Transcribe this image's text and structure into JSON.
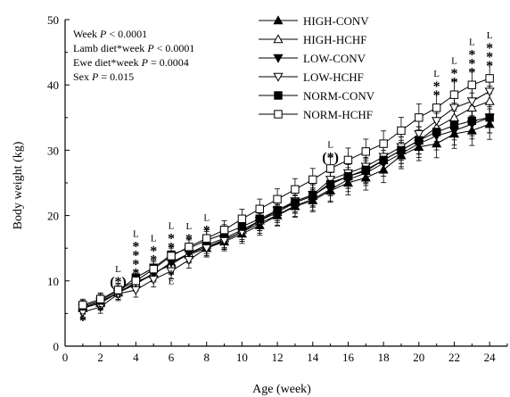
{
  "chart_data": {
    "type": "line",
    "xlabel": "Age (week)",
    "ylabel": "Body weight (kg)",
    "xlim": [
      0,
      25
    ],
    "ylim": [
      0,
      50
    ],
    "xticks": [
      0,
      2,
      4,
      6,
      8,
      10,
      12,
      14,
      16,
      18,
      20,
      22,
      24
    ],
    "yticks": [
      0,
      10,
      20,
      30,
      40,
      50
    ],
    "stats_text": [
      {
        "prefix": "Week ",
        "p": "P",
        "rest": " < 0.0001"
      },
      {
        "prefix": "Lamb diet*week ",
        "p": "P",
        "rest": " < 0.0001"
      },
      {
        "prefix": "Ewe diet*week ",
        "p": "P",
        "rest": " = 0.0004"
      },
      {
        "prefix": "Sex ",
        "p": "P",
        "rest": " = 0.015"
      }
    ],
    "legend_position": "top-right",
    "x": [
      1,
      2,
      3,
      4,
      5,
      6,
      7,
      8,
      9,
      10,
      11,
      12,
      13,
      14,
      15,
      16,
      17,
      18,
      19,
      20,
      21,
      22,
      23,
      24
    ],
    "series": [
      {
        "name": "HIGH-CONV",
        "marker": "triangle-up",
        "fill": "filled",
        "values": [
          5.9,
          6.8,
          8.2,
          9.6,
          11.0,
          12.8,
          14.0,
          15.0,
          16.0,
          17.2,
          18.5,
          20.0,
          21.4,
          22.3,
          23.8,
          25.0,
          25.8,
          27.0,
          29.2,
          30.5,
          31.0,
          32.5,
          33.0,
          34.0
        ]
      },
      {
        "name": "HIGH-HCHF",
        "marker": "triangle-up",
        "fill": "open",
        "values": [
          5.8,
          6.6,
          8.2,
          9.5,
          11.2,
          12.5,
          14.2,
          15.5,
          16.5,
          17.8,
          19.2,
          20.5,
          22.0,
          23.0,
          25.0,
          26.0,
          26.8,
          28.5,
          30.0,
          31.5,
          33.5,
          35.0,
          36.5,
          37.5
        ]
      },
      {
        "name": "LOW-CONV",
        "marker": "triangle-down",
        "fill": "filled",
        "values": [
          5.9,
          6.8,
          8.2,
          9.8,
          11.0,
          12.8,
          14.2,
          15.2,
          16.3,
          17.5,
          18.8,
          20.1,
          21.5,
          22.5,
          24.0,
          25.5,
          26.5,
          28.0,
          29.5,
          31.0,
          32.2,
          33.0,
          34.0,
          35.0
        ]
      },
      {
        "name": "LOW-HCHF",
        "marker": "triangle-down",
        "fill": "open",
        "values": [
          5.2,
          6.0,
          8.0,
          8.6,
          10.2,
          11.5,
          13.2,
          15.0,
          16.2,
          17.5,
          19.2,
          20.8,
          22.2,
          23.2,
          25.5,
          26.5,
          27.5,
          29.0,
          30.5,
          32.5,
          34.5,
          36.5,
          37.5,
          39.0
        ]
      },
      {
        "name": "NORM-CONV",
        "marker": "square",
        "fill": "filled",
        "values": [
          6.1,
          7.0,
          8.5,
          10.5,
          12.0,
          14.0,
          15.0,
          16.2,
          17.2,
          18.3,
          19.5,
          20.8,
          22.0,
          23.0,
          24.8,
          26.0,
          27.0,
          28.5,
          30.0,
          31.5,
          32.8,
          33.8,
          34.5,
          35.0
        ]
      },
      {
        "name": "NORM-HCHF",
        "marker": "square",
        "fill": "open",
        "values": [
          6.3,
          7.2,
          8.6,
          10.0,
          11.8,
          13.8,
          15.2,
          16.5,
          17.8,
          19.5,
          21.0,
          22.5,
          24.0,
          25.5,
          27.2,
          28.5,
          29.8,
          31.0,
          33.0,
          35.0,
          36.5,
          38.5,
          40.0,
          41.0
        ]
      }
    ],
    "error_bar": 1.5,
    "annotations": [
      {
        "x": 1,
        "top": [
          "*"
        ],
        "bottom": [
          "E"
        ],
        "y": 4.0
      },
      {
        "x": 2,
        "top": [
          "*"
        ],
        "bottom": [
          "E"
        ],
        "y": 5.5
      },
      {
        "x": 3,
        "top": [
          "L",
          "(*)"
        ],
        "bottom": [],
        "y": 10.0
      },
      {
        "x": 4,
        "top": [
          "L",
          "*",
          "*",
          "*",
          "*"
        ],
        "bottom": [],
        "y": 11.3
      },
      {
        "x": 5,
        "top": [
          "L",
          "*",
          "*"
        ],
        "bottom": [],
        "y": 13.3
      },
      {
        "x": 6,
        "top": [
          "L",
          "*",
          "*"
        ],
        "bottom": [
          "*",
          "E"
        ],
        "y": 15.2
      },
      {
        "x": 7,
        "top": [
          "L",
          "*"
        ],
        "bottom": [],
        "y": 16.5
      },
      {
        "x": 8,
        "top": [
          "L",
          "*"
        ],
        "bottom": [],
        "y": 17.8
      },
      {
        "x": 15,
        "top": [
          "L",
          "(*)"
        ],
        "bottom": [],
        "y": 29.0
      },
      {
        "x": 21,
        "top": [
          "L",
          "*",
          "*"
        ],
        "bottom": [],
        "y": 38.5
      },
      {
        "x": 22,
        "top": [
          "L",
          "*",
          "*"
        ],
        "bottom": [],
        "y": 40.5
      },
      {
        "x": 23,
        "top": [
          "L",
          "*",
          "*",
          "*"
        ],
        "bottom": [],
        "y": 42.0
      },
      {
        "x": 24,
        "top": [
          "L",
          "*",
          "*",
          "*"
        ],
        "bottom": [],
        "y": 43.0
      }
    ]
  }
}
